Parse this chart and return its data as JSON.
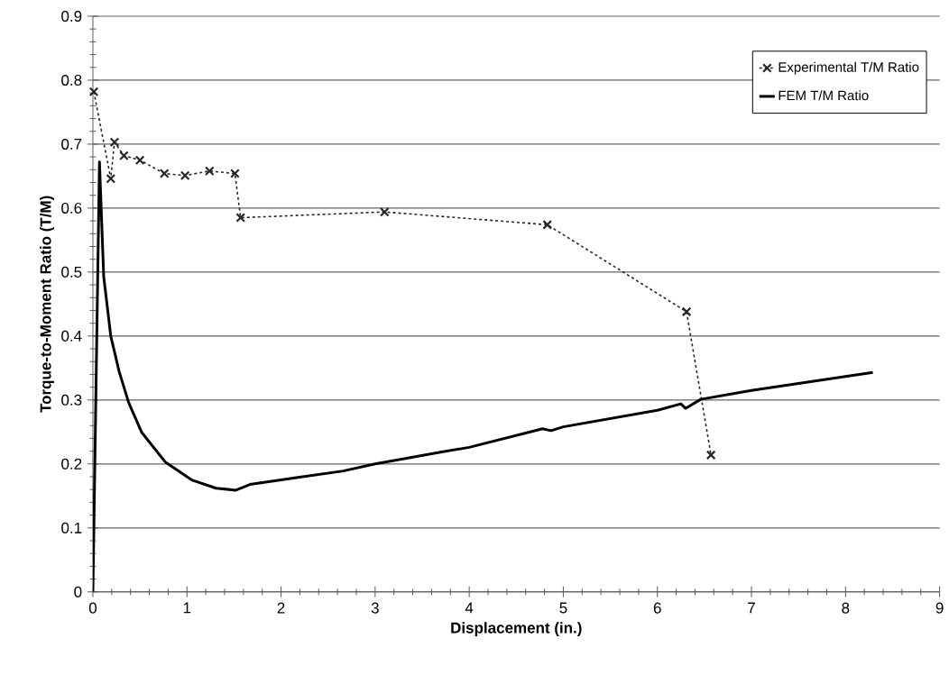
{
  "chart_data": {
    "type": "line",
    "xlabel": "Displacement (in.)",
    "ylabel": "Torque-to-Moment Ratio (T/M)",
    "xlim": [
      0,
      9
    ],
    "xticks": [
      0,
      1,
      2,
      3,
      4,
      5,
      6,
      7,
      8,
      9
    ],
    "ylim": [
      0,
      0.9
    ],
    "yticks": [
      0,
      0.1,
      0.2,
      0.3,
      0.4,
      0.5,
      0.6,
      0.7,
      0.8,
      0.9
    ],
    "grid": "y",
    "legend": "top right",
    "series": [
      {
        "name": "Experimental T/M Ratio",
        "color": "#262626",
        "marker": "cross",
        "line_style": "dashed",
        "x": [
          0.01,
          0.19,
          0.23,
          0.33,
          0.5,
          0.76,
          0.98,
          1.24,
          1.51,
          1.57,
          3.1,
          4.83,
          6.31,
          6.57
        ],
        "values": [
          0.782,
          0.646,
          0.703,
          0.682,
          0.675,
          0.654,
          0.651,
          0.658,
          0.654,
          0.585,
          0.594,
          0.574,
          0.438,
          0.214
        ]
      },
      {
        "name": "FEM T/M Ratio",
        "color": "#000000",
        "marker": "none",
        "line_style": "solid",
        "x": [
          0,
          0.07,
          0.115,
          0.19,
          0.28,
          0.38,
          0.52,
          0.77,
          1.05,
          1.31,
          1.52,
          1.67,
          2.18,
          2.66,
          3.0,
          3.68,
          4.0,
          4.78,
          4.87,
          5.0,
          6.0,
          6.25,
          6.3,
          6.46,
          7.0,
          8.29
        ],
        "values": [
          0,
          0.672,
          0.493,
          0.4,
          0.344,
          0.296,
          0.249,
          0.203,
          0.175,
          0.162,
          0.159,
          0.168,
          0.179,
          0.189,
          0.2,
          0.218,
          0.226,
          0.255,
          0.252,
          0.258,
          0.284,
          0.294,
          0.287,
          0.301,
          0.315,
          0.343
        ]
      }
    ]
  }
}
